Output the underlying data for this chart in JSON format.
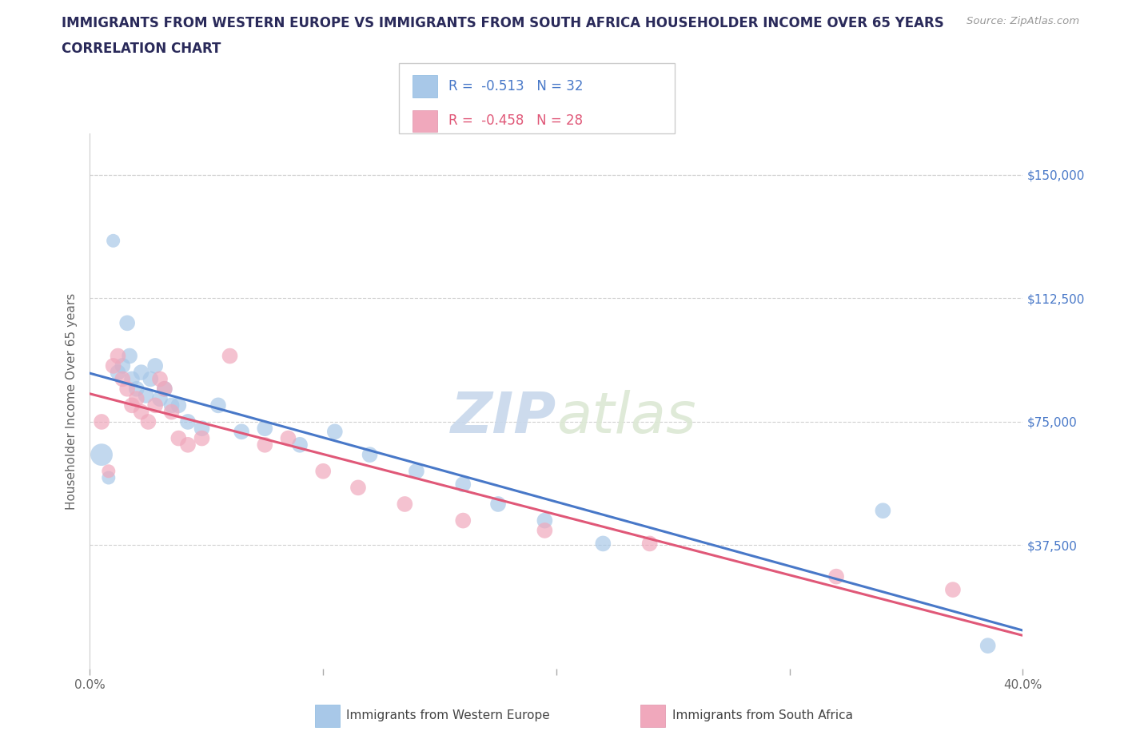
{
  "title_line1": "IMMIGRANTS FROM WESTERN EUROPE VS IMMIGRANTS FROM SOUTH AFRICA HOUSEHOLDER INCOME OVER 65 YEARS",
  "title_line2": "CORRELATION CHART",
  "source": "Source: ZipAtlas.com",
  "ylabel": "Householder Income Over 65 years",
  "xlim": [
    0.0,
    0.4
  ],
  "ylim": [
    0,
    162500
  ],
  "ytick_labels": [
    "$150,000",
    "$112,500",
    "$75,000",
    "$37,500"
  ],
  "ytick_values": [
    150000,
    112500,
    75000,
    37500
  ],
  "grid_color": "#d0d0d0",
  "background_color": "#ffffff",
  "blue_color": "#a8c8e8",
  "pink_color": "#f0a8bc",
  "blue_line_color": "#4878c8",
  "pink_line_color": "#e05878",
  "title_color": "#2a2a5a",
  "r_blue": -0.513,
  "n_blue": 32,
  "r_pink": -0.458,
  "n_pink": 28,
  "legend_label_blue": "Immigrants from Western Europe",
  "legend_label_pink": "Immigrants from South Africa",
  "blue_scatter_x": [
    0.005,
    0.008,
    0.01,
    0.012,
    0.014,
    0.016,
    0.017,
    0.018,
    0.02,
    0.022,
    0.024,
    0.026,
    0.028,
    0.03,
    0.032,
    0.035,
    0.038,
    0.042,
    0.048,
    0.055,
    0.065,
    0.075,
    0.09,
    0.105,
    0.12,
    0.14,
    0.16,
    0.175,
    0.195,
    0.22,
    0.34,
    0.385
  ],
  "blue_scatter_y": [
    65000,
    58000,
    130000,
    90000,
    92000,
    105000,
    95000,
    88000,
    85000,
    90000,
    83000,
    88000,
    92000,
    82000,
    85000,
    80000,
    80000,
    75000,
    73000,
    80000,
    72000,
    73000,
    68000,
    72000,
    65000,
    60000,
    56000,
    50000,
    45000,
    38000,
    48000,
    7000
  ],
  "blue_scatter_size": [
    400,
    150,
    150,
    200,
    200,
    200,
    200,
    200,
    200,
    200,
    200,
    200,
    200,
    200,
    200,
    200,
    200,
    200,
    200,
    200,
    200,
    200,
    200,
    200,
    200,
    200,
    200,
    200,
    200,
    200,
    200,
    200
  ],
  "pink_scatter_x": [
    0.005,
    0.008,
    0.01,
    0.012,
    0.014,
    0.016,
    0.018,
    0.02,
    0.022,
    0.025,
    0.028,
    0.03,
    0.032,
    0.035,
    0.038,
    0.042,
    0.048,
    0.06,
    0.075,
    0.085,
    0.1,
    0.115,
    0.135,
    0.16,
    0.195,
    0.24,
    0.32,
    0.37
  ],
  "pink_scatter_y": [
    75000,
    60000,
    92000,
    95000,
    88000,
    85000,
    80000,
    82000,
    78000,
    75000,
    80000,
    88000,
    85000,
    78000,
    70000,
    68000,
    70000,
    95000,
    68000,
    70000,
    60000,
    55000,
    50000,
    45000,
    42000,
    38000,
    28000,
    24000
  ],
  "pink_scatter_size": [
    200,
    150,
    200,
    200,
    200,
    200,
    200,
    200,
    200,
    200,
    200,
    200,
    200,
    200,
    200,
    200,
    200,
    200,
    200,
    200,
    200,
    200,
    200,
    200,
    200,
    200,
    200,
    200
  ]
}
